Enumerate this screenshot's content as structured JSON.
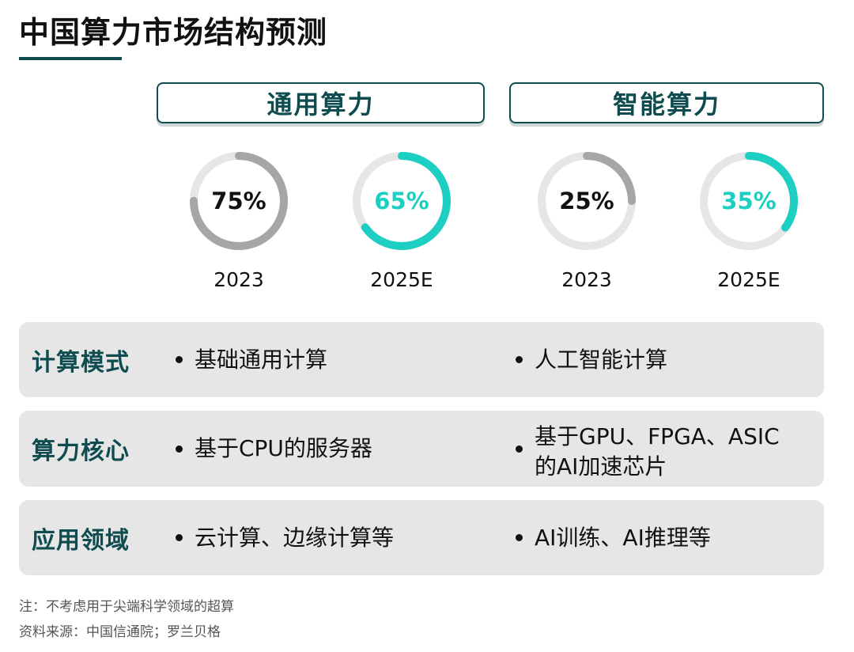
{
  "title": "中国算力市场结构预测",
  "categories": {
    "general": "通用算力",
    "ai": "智能算力"
  },
  "chart_data": {
    "type": "pie",
    "series": [
      {
        "name": "通用算力",
        "points": [
          {
            "year": "2023",
            "label": "75%",
            "value": 75
          },
          {
            "year": "2025E",
            "label": "65%",
            "value": 65
          }
        ]
      },
      {
        "name": "智能算力",
        "points": [
          {
            "year": "2023",
            "label": "25%",
            "value": 25
          },
          {
            "year": "2025E",
            "label": "35%",
            "value": 35
          }
        ]
      }
    ]
  },
  "colors": {
    "actual": "#a6a6a6",
    "forecast": "#1ccfc2",
    "track": "#e6e6e6",
    "accent": "#0f4c4f"
  },
  "table": {
    "rows": [
      {
        "label": "计算模式",
        "general": "基础通用计算",
        "ai": "人工智能计算"
      },
      {
        "label": "算力核心",
        "general": "基于CPU的服务器",
        "ai_line1": "基于GPU、FPGA、ASIC",
        "ai_line2": "的AI加速芯片"
      },
      {
        "label": "应用领域",
        "general": "云计算、边缘计算等",
        "ai": "AI训练、AI推理等"
      }
    ]
  },
  "footnotes": {
    "note": "注：不考虑用于尖端科学领域的超算",
    "source": "资料来源：中国信通院；罗兰贝格"
  }
}
